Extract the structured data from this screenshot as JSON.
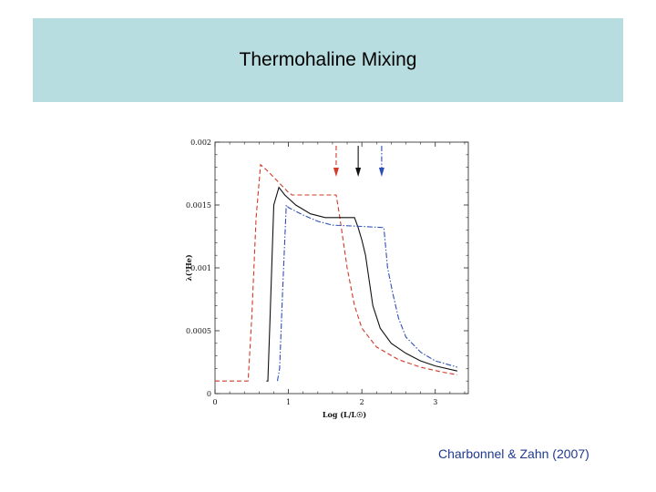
{
  "header": {
    "title": "Thermohaline Mixing"
  },
  "citation": "Charbonnel & Zahn (2007)",
  "chart_data": {
    "type": "line",
    "xlabel": "Log (L/L☉)",
    "ylabel": "λ(³He)",
    "xlim": [
      0,
      3.45
    ],
    "ylim": [
      0,
      0.002
    ],
    "xticks": [
      0,
      1,
      2,
      3
    ],
    "yticks": [
      0,
      0.0005,
      0.001,
      0.0015,
      0.002
    ],
    "ytick_labels": [
      "0",
      "0.0005",
      "0.001",
      "0.0015",
      "0.002"
    ],
    "series": [
      {
        "color": "#d23a2a",
        "style": "dashed",
        "points": [
          [
            0,
            0.0001
          ],
          [
            0.45,
            0.0001
          ],
          [
            0.5,
            0.0006
          ],
          [
            0.56,
            0.0014
          ],
          [
            0.62,
            0.00182
          ],
          [
            0.7,
            0.00178
          ],
          [
            0.8,
            0.00172
          ],
          [
            0.9,
            0.00166
          ],
          [
            1.0,
            0.0016
          ],
          [
            1.05,
            0.00158
          ],
          [
            1.15,
            0.00158
          ],
          [
            1.3,
            0.00158
          ],
          [
            1.5,
            0.00158
          ],
          [
            1.65,
            0.00158
          ],
          [
            1.7,
            0.0014
          ],
          [
            1.8,
            0.001
          ],
          [
            1.9,
            0.0007
          ],
          [
            2.0,
            0.00052
          ],
          [
            2.2,
            0.00037
          ],
          [
            2.5,
            0.00027
          ],
          [
            2.8,
            0.00021
          ],
          [
            3.1,
            0.00017
          ],
          [
            3.3,
            0.00015
          ]
        ]
      },
      {
        "color": "#111111",
        "style": "solid",
        "points": [
          [
            0.7,
            0.0001
          ],
          [
            0.72,
            0.0001
          ],
          [
            0.75,
            0.0006
          ],
          [
            0.8,
            0.0015
          ],
          [
            0.87,
            0.00164
          ],
          [
            0.95,
            0.00158
          ],
          [
            1.1,
            0.0015
          ],
          [
            1.3,
            0.00143
          ],
          [
            1.5,
            0.0014
          ],
          [
            1.9,
            0.0014
          ],
          [
            1.95,
            0.00132
          ],
          [
            2.0,
            0.00122
          ],
          [
            2.05,
            0.0011
          ],
          [
            2.1,
            0.0009
          ],
          [
            2.15,
            0.0007
          ],
          [
            2.25,
            0.00052
          ],
          [
            2.4,
            0.0004
          ],
          [
            2.6,
            0.00032
          ],
          [
            2.8,
            0.00026
          ],
          [
            3.0,
            0.00022
          ],
          [
            3.3,
            0.00018
          ]
        ]
      },
      {
        "color": "#2f4fb8",
        "style": "dashdot",
        "points": [
          [
            0.85,
            0.0001
          ],
          [
            0.88,
            0.0002
          ],
          [
            0.92,
            0.0008
          ],
          [
            0.97,
            0.0015
          ],
          [
            1.0,
            0.00148
          ],
          [
            1.2,
            0.00142
          ],
          [
            1.4,
            0.00137
          ],
          [
            1.6,
            0.00134
          ],
          [
            2.0,
            0.00133
          ],
          [
            2.3,
            0.00132
          ],
          [
            2.35,
            0.001
          ],
          [
            2.42,
            0.0008
          ],
          [
            2.5,
            0.0006
          ],
          [
            2.6,
            0.00045
          ],
          [
            2.8,
            0.00033
          ],
          [
            3.0,
            0.00026
          ],
          [
            3.3,
            0.00021
          ]
        ]
      }
    ],
    "arrows": [
      {
        "color": "#d23a2a",
        "style": "dashed",
        "x": 1.65
      },
      {
        "color": "#111111",
        "style": "solid",
        "x": 1.95
      },
      {
        "color": "#2f4fb8",
        "style": "dashdot",
        "x": 2.27
      }
    ]
  }
}
